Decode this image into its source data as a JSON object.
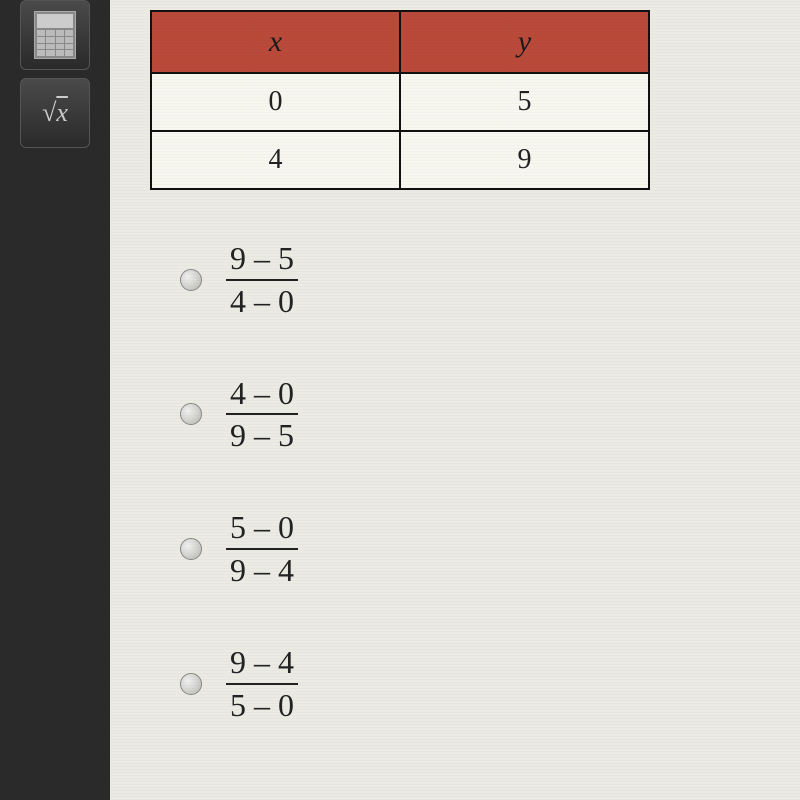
{
  "sidebar": {
    "tools": [
      {
        "name": "calculator-icon"
      },
      {
        "name": "sqrt-icon",
        "label_pre": "√",
        "label_x": "x"
      }
    ]
  },
  "table": {
    "type": "table",
    "columns": [
      "x",
      "y"
    ],
    "rows": [
      [
        "0",
        "5"
      ],
      [
        "4",
        "9"
      ]
    ],
    "header_bg": "#b94a3a",
    "cell_bg": "#f7f7f0",
    "border_color": "#111111",
    "header_fontsize": 30,
    "cell_fontsize": 28,
    "header_font_style": "italic"
  },
  "options": [
    {
      "numerator": "9 – 5",
      "denominator": "4 – 0"
    },
    {
      "numerator": "4 – 0",
      "denominator": "9 – 5"
    },
    {
      "numerator": "5 – 0",
      "denominator": "9 – 4"
    },
    {
      "numerator": "9 – 4",
      "denominator": "5 – 0"
    }
  ],
  "colors": {
    "page_bg": "#ebebe4",
    "sidebar_bg": "#2a2a2a",
    "text_color": "#222222",
    "radio_border": "#888888"
  }
}
